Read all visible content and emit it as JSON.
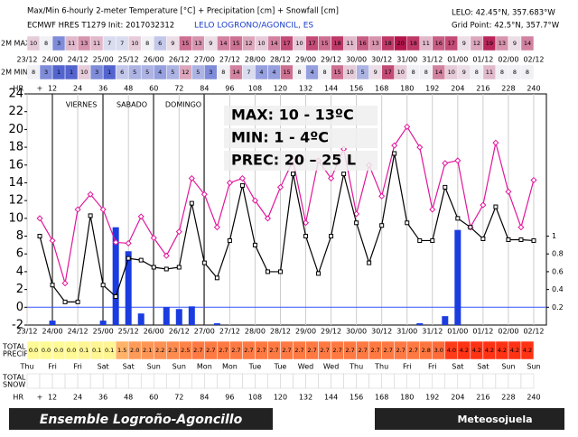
{
  "chart_data": {
    "type": "meteogram",
    "title": "Max/Min 6-hourly 2-meter Temperature [°C] + Precipitation [cm] + Snowfall [cm]",
    "subtitle": "ECMWF HRES T1279 Init: 2017032312",
    "station": "LELO LOGRONO/AGONCIL, ES",
    "coords": [
      "LELO: 42.45°N, 357.683°W",
      "Grid Point: 42.5°N, 357.7°W"
    ],
    "day_names": [
      "VIERNES",
      "SABADO",
      "DOMINGO"
    ],
    "headline": [
      {
        "text": "MAX: 10 - 13ºC",
        "color": "#e00000"
      },
      {
        "text": "MIN:  1 - 4ºC",
        "color": "#1aa0d8"
      },
      {
        "text": "PREC: 20 – 25 L",
        "color": "#7a2a9a"
      }
    ],
    "xlim": [
      0,
      246
    ],
    "ylim": [
      -2,
      24
    ],
    "yticks": [
      -2,
      0,
      2,
      4,
      6,
      8,
      10,
      12,
      14,
      16,
      18,
      20,
      22,
      24
    ],
    "y2lim": [
      0,
      2.6
    ],
    "y2ticks": [
      0.2,
      0.4,
      0.6,
      0.8,
      1
    ],
    "grid": true,
    "xticks": [
      {
        "value": 0,
        "label": "23/12"
      },
      {
        "value": 12,
        "label": "24/00"
      },
      {
        "value": 24,
        "label": "24/12"
      },
      {
        "value": 36,
        "label": "25/00"
      },
      {
        "value": 48,
        "label": "25/12"
      },
      {
        "value": 60,
        "label": "26/00"
      },
      {
        "value": 72,
        "label": "26/12"
      },
      {
        "value": 84,
        "label": "27/00"
      },
      {
        "value": 96,
        "label": "27/12"
      },
      {
        "value": 108,
        "label": "28/00"
      },
      {
        "value": 120,
        "label": "28/12"
      },
      {
        "value": 132,
        "label": "29/00"
      },
      {
        "value": 144,
        "label": "29/12"
      },
      {
        "value": 156,
        "label": "30/00"
      },
      {
        "value": 168,
        "label": "30/12"
      },
      {
        "value": 180,
        "label": "31/00"
      },
      {
        "value": 192,
        "label": "31/12"
      },
      {
        "value": 204,
        "label": "01/00"
      },
      {
        "value": 216,
        "label": "01/12"
      },
      {
        "value": 228,
        "label": "02/00"
      },
      {
        "value": 240,
        "label": "02/12"
      }
    ],
    "weekdays": [
      "Thu",
      "Fri",
      "Fri",
      "Sat",
      "Sat",
      "Sun",
      "Sun",
      "Mon",
      "Mon",
      "Tue",
      "Tue",
      "Wed",
      "Wed",
      "Thu",
      "Thu",
      "Fri",
      "Fri",
      "Sat",
      "Sat",
      "Sun",
      "Sun"
    ],
    "hour_label": "HR",
    "hour_prefix": "+",
    "hour_ticks": [
      12,
      24,
      36,
      48,
      60,
      72,
      84,
      96,
      108,
      120,
      132,
      144,
      156,
      168,
      180,
      192,
      204,
      216,
      228,
      240
    ],
    "x": [
      6,
      12,
      18,
      24,
      30,
      36,
      42,
      48,
      54,
      60,
      66,
      72,
      78,
      84,
      90,
      96,
      102,
      108,
      114,
      120,
      126,
      132,
      138,
      144,
      150,
      156,
      162,
      168,
      174,
      180,
      186,
      192,
      198,
      204,
      210,
      216,
      222,
      228,
      234,
      240
    ],
    "series": [
      {
        "color": "#e0169a",
        "values": [
          10,
          7.5,
          2.7,
          11,
          12.7,
          11,
          7.3,
          7.2,
          10.2,
          7.8,
          5.8,
          8.5,
          14.5,
          12.7,
          9,
          14,
          14.5,
          12,
          10,
          13.5,
          16.5,
          9.5,
          16.5,
          14.5,
          17.8,
          10.5,
          16,
          12.5,
          18.2,
          20.3,
          18,
          11,
          16.2,
          16.5,
          9,
          11.5,
          18.5,
          13,
          9,
          14.3
        ]
      },
      {
        "color": "#000000",
        "values": [
          8,
          2.5,
          0.6,
          0.6,
          10.3,
          2.5,
          1.2,
          5.5,
          5.3,
          4.5,
          4.3,
          4.5,
          11.7,
          5,
          3.3,
          7.5,
          13.7,
          7,
          4,
          4,
          15,
          8,
          3.8,
          8,
          15,
          9.5,
          5,
          9.2,
          17.3,
          9.5,
          7.5,
          7.5,
          13.5,
          10,
          9,
          7.7,
          11.3,
          7.6,
          7.6,
          7.5
        ]
      }
    ],
    "precip": {
      "color": "#1a3ce0",
      "axis": "y2",
      "x": [
        12,
        36,
        42,
        48,
        54,
        66,
        72,
        78,
        90,
        186,
        198,
        204
      ],
      "values": [
        0.05,
        0.05,
        1.1,
        0.83,
        0.13,
        0.2,
        0.18,
        0.21,
        0.02,
        0.02,
        0.1,
        1.07
      ]
    },
    "rows": [
      {
        "name": "2M MAX",
        "values": [
          10,
          8,
          3,
          11,
          13,
          11,
          7,
          7,
          10,
          8,
          6,
          9,
          15,
          13,
          9,
          14,
          15,
          12,
          10,
          14,
          17,
          10,
          17,
          15,
          18,
          11,
          16,
          13,
          18,
          20,
          18,
          11,
          16,
          17,
          9,
          12,
          19,
          13,
          9,
          14
        ]
      },
      {
        "name": "2M MIN",
        "values": [
          8,
          3,
          1,
          1,
          10,
          3,
          1,
          6,
          5,
          5,
          4,
          5,
          12,
          5,
          3,
          8,
          14,
          7,
          4,
          4,
          15,
          8,
          4,
          8,
          15,
          10,
          5,
          9,
          17,
          10,
          8,
          8,
          14,
          10,
          9,
          8,
          11,
          8,
          8,
          8
        ]
      }
    ],
    "total_precip": {
      "label": [
        "TOTAL",
        "PRECIP"
      ],
      "values": [
        0,
        0,
        0,
        0,
        0.1,
        0.1,
        0.1,
        1.5,
        2,
        2.1,
        2.2,
        2.3,
        2.5,
        2.7,
        2.7,
        2.7,
        2.7,
        2.7,
        2.7,
        2.7,
        2.7,
        2.7,
        2.7,
        2.7,
        2.7,
        2.7,
        2.7,
        2.7,
        2.7,
        2.7,
        2.7,
        2.8,
        3,
        4,
        4.2,
        4.2,
        4.2,
        4.2,
        4.2,
        4.2
      ],
      "value_labels": [
        "0.0",
        "0.0",
        "0.0",
        "0.0",
        "0.1",
        "0.1",
        "0.1",
        "1.5",
        "2.0",
        "2.1",
        "2.2",
        "2.3",
        "2.5",
        "2.7",
        "2.7",
        "2.7",
        "2.7",
        "2.7",
        "2.7",
        "2.7",
        "2.7",
        "2.7",
        "2.7",
        "2.7",
        "2.7",
        "2.7",
        "2.7",
        "2.7",
        "2.7",
        "2.7",
        "2.7",
        "2.8",
        "3.0",
        "4.0",
        "4.2",
        "4.2",
        "4.2",
        "4.2",
        "4.2",
        "4.2"
      ]
    },
    "total_snow": {
      "label": [
        "TOTAL",
        "SNOW"
      ]
    },
    "footer": "Ensemble Logroño-Agoncillo",
    "brand": "Meteosojuela"
  }
}
